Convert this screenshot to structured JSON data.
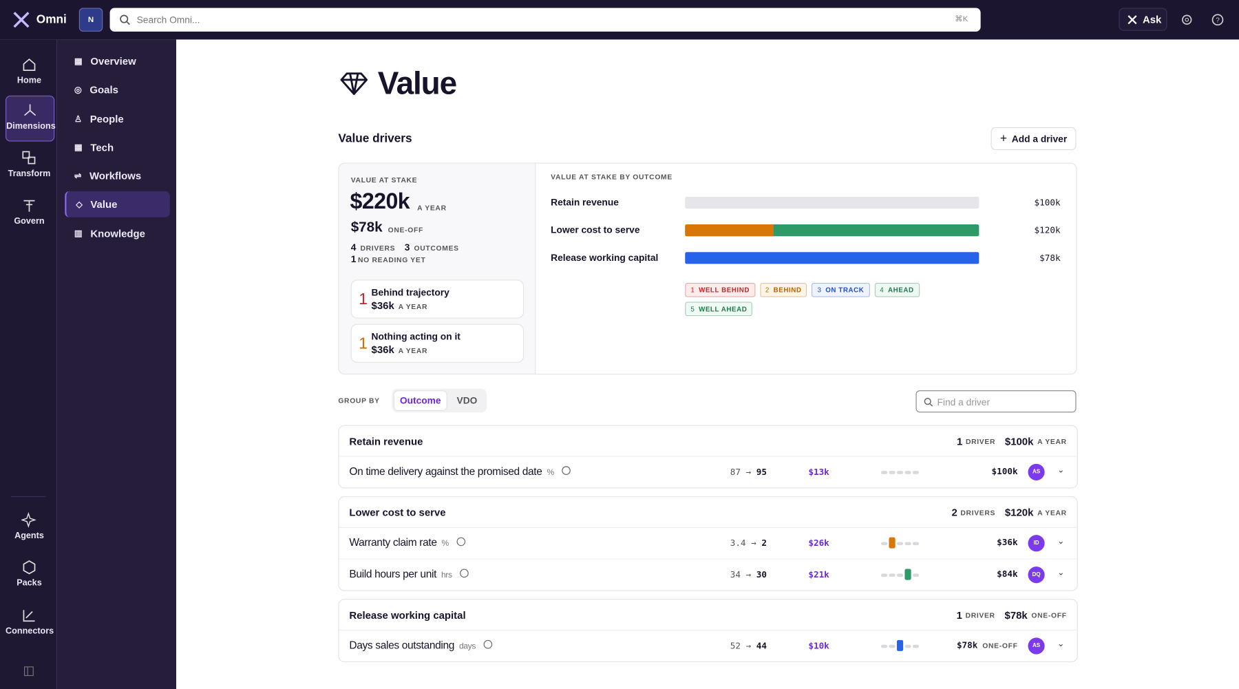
{
  "topbar": {
    "brand": "Omni",
    "workspace": "N",
    "search_placeholder": "Search Omni...",
    "shortcut": "⌘K",
    "ask": "Ask"
  },
  "rail": {
    "items": [
      "Home",
      "Dimensions",
      "Transform",
      "Govern"
    ],
    "bottom_items": [
      "Agents",
      "Packs",
      "Connectors"
    ]
  },
  "sidebar": {
    "items": [
      "Overview",
      "Goals",
      "People",
      "Tech",
      "Workflows",
      "Value",
      "Knowledge"
    ]
  },
  "page": {
    "title": "Value",
    "section_title": "Value drivers",
    "add_button": "Add a driver"
  },
  "summary": {
    "label": "VALUE AT STAKE",
    "yearly": "$220k",
    "yearly_period": "A YEAR",
    "one_off": "$78k",
    "one_off_period": "ONE-OFF",
    "drivers_count": "4",
    "drivers_label": "DRIVERS",
    "outcomes_count": "3",
    "outcomes_label": "OUTCOMES",
    "no_reading_count": "1",
    "no_reading_label": "NO READING YET",
    "cards": [
      {
        "count": "1",
        "title": "Behind trajectory",
        "value": "$36k",
        "period": "A YEAR"
      },
      {
        "count": "1",
        "title": "Nothing acting on it",
        "value": "$36k",
        "period": "A YEAR"
      }
    ]
  },
  "outcome_chart": {
    "title": "VALUE AT STAKE BY OUTCOME",
    "rows": [
      {
        "label": "Retain revenue",
        "value": "$100k"
      },
      {
        "label": "Lower cost to serve",
        "value": "$120k"
      },
      {
        "label": "Release working capital",
        "value": "$78k"
      }
    ],
    "legend": [
      {
        "num": "1",
        "label": "WELL BEHIND"
      },
      {
        "num": "2",
        "label": "BEHIND"
      },
      {
        "num": "3",
        "label": "ON TRACK"
      },
      {
        "num": "4",
        "label": "AHEAD"
      },
      {
        "num": "5",
        "label": "WELL AHEAD"
      }
    ]
  },
  "controls": {
    "group_by_label": "GROUP BY",
    "options": [
      "Outcome",
      "VDO"
    ],
    "find_placeholder": "Find a driver"
  },
  "groups": [
    {
      "name": "Retain revenue",
      "count": "1",
      "count_label": "DRIVER",
      "value": "$100k",
      "period": "A YEAR",
      "drivers": [
        {
          "name": "On time delivery against the promised date",
          "unit": "%",
          "from": "87",
          "to": "95",
          "impact": "$13k",
          "value": "$100k",
          "avatar": "AS"
        }
      ]
    },
    {
      "name": "Lower cost to serve",
      "count": "2",
      "count_label": "DRIVERS",
      "value": "$120k",
      "period": "A YEAR",
      "drivers": [
        {
          "name": "Warranty claim rate",
          "unit": "%",
          "from": "3.4",
          "to": "2",
          "impact": "$26k",
          "value": "$36k",
          "avatar": "ID"
        },
        {
          "name": "Build hours per unit",
          "unit": "hrs",
          "from": "34",
          "to": "30",
          "impact": "$21k",
          "value": "$84k",
          "avatar": "DQ"
        }
      ]
    },
    {
      "name": "Release working capital",
      "count": "1",
      "count_label": "DRIVER",
      "value": "$78k",
      "period": "ONE-OFF",
      "drivers": [
        {
          "name": "Days sales outstanding",
          "unit": "days",
          "from": "52",
          "to": "44",
          "impact": "$10k",
          "value": "$78k",
          "period": "ONE-OFF",
          "avatar": "AS"
        }
      ]
    }
  ]
}
